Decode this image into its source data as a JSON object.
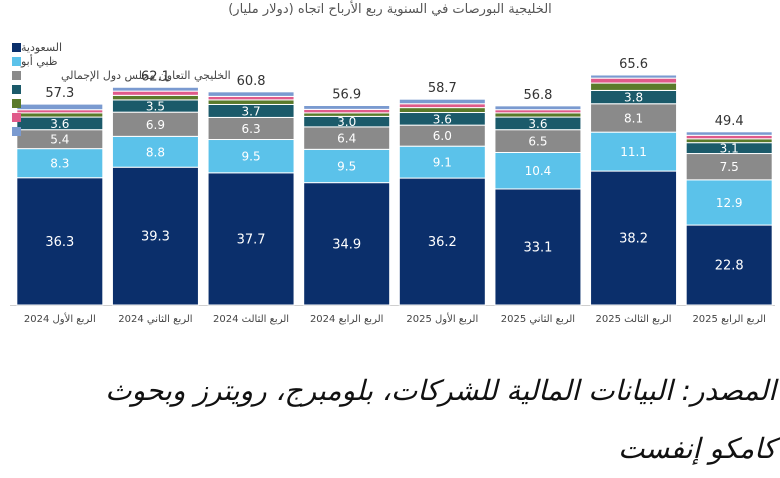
{
  "chart_data": {
    "type": "bar",
    "stacked": true,
    "title": "(دولار مليار) الخليجية البورصات في السنوية ربع الأرباح اتجاه",
    "categories": [
      "الربع الأول 2024",
      "الربع الثاني 2024",
      "الربع الثالث 2024",
      "الربع الرابع 2024",
      "الربع الأول 2025",
      "الربع الثاني 2025",
      "الربع الثالث 2025",
      "الربع الرابع 2025"
    ],
    "totals": [
      "57.3",
      "62.1",
      "60.8",
      "56.9",
      "58.7",
      "56.8",
      "65.6",
      "49.4"
    ],
    "ylim": [
      0,
      70
    ],
    "series": [
      {
        "name": "السعودية",
        "color": "#0b2f6b",
        "values": [
          36.3,
          39.3,
          37.7,
          34.9,
          36.2,
          33.1,
          38.2,
          22.8
        ],
        "labels": [
          "36.3",
          "39.3",
          "37.7",
          "34.9",
          "36.2",
          "33.1",
          "38.2",
          "22.8"
        ]
      },
      {
        "name": "ظبي أبو",
        "color": "#5bc2ea",
        "values": [
          8.3,
          8.8,
          9.5,
          9.5,
          9.1,
          10.4,
          11.1,
          12.9
        ],
        "labels": [
          "8.3",
          "8.8",
          "9.5",
          "9.5",
          "9.1",
          "10.4",
          "11.1",
          "12.9"
        ]
      },
      {
        "name": "",
        "color": "#8a8a8a",
        "values": [
          5.4,
          6.9,
          6.3,
          6.4,
          6.0,
          6.5,
          8.1,
          7.5
        ],
        "labels": [
          "5.4",
          "6.9",
          "6.3",
          "6.4",
          "6.0",
          "6.5",
          "8.1",
          "7.5"
        ]
      },
      {
        "name": "",
        "color": "#1b5a6a",
        "values": [
          3.6,
          3.5,
          3.7,
          3.0,
          3.6,
          3.6,
          3.8,
          3.1
        ],
        "labels": [
          "3.6",
          "3.5",
          "3.7",
          "3.0",
          "3.6",
          "3.6",
          "3.8",
          "3.1"
        ]
      },
      {
        "name": "",
        "color": "#5a7a2a",
        "values": [
          1.2,
          1.3,
          1.3,
          1.0,
          1.4,
          1.2,
          2.1,
          1.1
        ],
        "labels": [
          "",
          "",
          "",
          "",
          "",
          "",
          "",
          ""
        ]
      },
      {
        "name": "",
        "color": "#e05a8a",
        "values": [
          0.9,
          1.2,
          1.0,
          1.0,
          1.1,
          0.9,
          1.4,
          1.0
        ],
        "labels": [
          "",
          "",
          "",
          "",
          "",
          "",
          "",
          ""
        ]
      },
      {
        "name": "",
        "color": "#7a9ad0",
        "values": [
          1.6,
          1.1,
          1.3,
          1.1,
          1.3,
          1.1,
          0.9,
          1.0
        ],
        "labels": [
          "",
          "",
          "",
          "",
          "",
          "",
          "",
          ""
        ]
      }
    ],
    "legend_overlap_text": "الخليجي التعاون مجلس دول الإجمالي",
    "legend_position": "top-left"
  },
  "source": {
    "line1": "المصدر: البيانات المالية للشركات، بلومبرج، رويترز وبحوث",
    "line2": "كامكو إنفست"
  }
}
